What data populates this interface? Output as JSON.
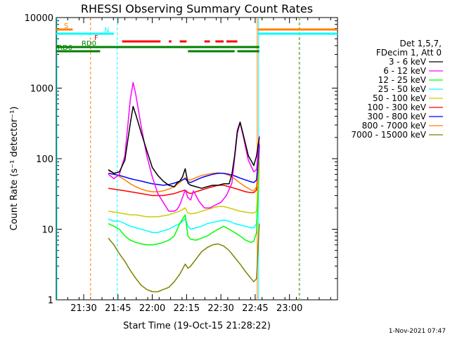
{
  "chart_data": {
    "type": "line",
    "title": "RHESSI Observing Summary Count Rates",
    "xlabel": "Start Time (19-Oct-15 21:28:22)",
    "ylabel": "Count Rate (s⁻¹ detector⁻¹)",
    "y_scale": "log",
    "ylim": [
      1,
      10000
    ],
    "xlim_minutes": [
      21.3,
      23.35
    ],
    "x_ticks": [
      {
        "t": 21.5,
        "label": "21:30"
      },
      {
        "t": 21.75,
        "label": "21:45"
      },
      {
        "t": 22.0,
        "label": "22:00"
      },
      {
        "t": 22.25,
        "label": "22:15"
      },
      {
        "t": 22.5,
        "label": "22:30"
      },
      {
        "t": 22.75,
        "label": "22:45"
      },
      {
        "t": 23.0,
        "label": "23:00"
      }
    ],
    "y_ticks": [
      {
        "v": 1,
        "label": "1"
      },
      {
        "v": 10,
        "label": "10"
      },
      {
        "v": 100,
        "label": "100"
      },
      {
        "v": 1000,
        "label": "1000"
      },
      {
        "v": 10000,
        "label": "10000"
      }
    ],
    "legend": {
      "header": [
        "Det 1,5,7,",
        "FDecim 1, Att 0"
      ],
      "position": "right"
    },
    "series": [
      {
        "name": "3 - 6 keV",
        "color": "#000000",
        "x": [
          21.68,
          21.72,
          21.76,
          21.8,
          21.84,
          21.86,
          21.88,
          21.92,
          21.96,
          22.0,
          22.04,
          22.08,
          22.12,
          22.16,
          22.18,
          22.2,
          22.22,
          22.24,
          22.26,
          22.28,
          22.32,
          22.36,
          22.4,
          22.44,
          22.48,
          22.52,
          22.56,
          22.58,
          22.6,
          22.62,
          22.64,
          22.66,
          22.7,
          22.74,
          22.76,
          22.78
        ],
        "y": [
          70,
          62,
          65,
          95,
          320,
          550,
          420,
          230,
          130,
          75,
          58,
          48,
          42,
          40,
          45,
          48,
          55,
          72,
          45,
          42,
          40,
          38,
          40,
          42,
          42,
          44,
          44,
          60,
          110,
          250,
          330,
          230,
          110,
          80,
          110,
          200
        ]
      },
      {
        "name": "6 - 12 keV",
        "color": "#ff00ff",
        "x": [
          21.68,
          21.72,
          21.76,
          21.8,
          21.84,
          21.86,
          21.88,
          21.92,
          21.96,
          22.0,
          22.04,
          22.08,
          22.12,
          22.16,
          22.18,
          22.2,
          22.24,
          22.26,
          22.28,
          22.3,
          22.34,
          22.38,
          22.42,
          22.46,
          22.5,
          22.54,
          22.58,
          22.62,
          22.64,
          22.66,
          22.7,
          22.74,
          22.76,
          22.78
        ],
        "y": [
          60,
          52,
          60,
          110,
          700,
          1200,
          800,
          280,
          110,
          55,
          32,
          24,
          18,
          18,
          19,
          22,
          36,
          28,
          26,
          35,
          25,
          20,
          20,
          22,
          24,
          30,
          45,
          230,
          320,
          220,
          95,
          65,
          70,
          210
        ]
      },
      {
        "name": "12 - 25 keV",
        "color": "#00ff00",
        "x": [
          21.68,
          21.72,
          21.76,
          21.8,
          21.84,
          21.88,
          21.92,
          21.96,
          22.0,
          22.04,
          22.08,
          22.12,
          22.16,
          22.2,
          22.24,
          22.26,
          22.28,
          22.32,
          22.36,
          22.4,
          22.44,
          22.48,
          22.52,
          22.56,
          22.6,
          22.64,
          22.68,
          22.72,
          22.74,
          22.76,
          22.78
        ],
        "y": [
          12,
          11,
          10,
          8,
          7,
          6.5,
          6.2,
          6,
          6,
          6.2,
          6.5,
          7,
          8,
          12,
          16,
          8,
          7.2,
          7,
          7.5,
          8,
          9,
          10,
          11,
          10,
          9,
          8,
          7,
          6.5,
          6.8,
          9,
          90
        ]
      },
      {
        "name": "25 - 50 keV",
        "color": "#00ffff",
        "x": [
          21.68,
          21.72,
          21.76,
          21.8,
          21.84,
          21.88,
          21.92,
          21.96,
          22.0,
          22.04,
          22.08,
          22.12,
          22.16,
          22.2,
          22.24,
          22.26,
          22.28,
          22.32,
          22.36,
          22.4,
          22.44,
          22.48,
          22.52,
          22.56,
          22.6,
          22.64,
          22.68,
          22.72,
          22.74,
          22.76,
          22.78
        ],
        "y": [
          14,
          13,
          13,
          12,
          11,
          10.5,
          10,
          9.5,
          9,
          9,
          9.5,
          10,
          11,
          12,
          14,
          11,
          10,
          10.5,
          11,
          12,
          12.5,
          13,
          13.5,
          13,
          12,
          11.5,
          11,
          10.5,
          10.5,
          12,
          110
        ]
      },
      {
        "name": "50 - 100 keV",
        "color": "#cccc00",
        "x": [
          21.68,
          21.72,
          21.76,
          21.8,
          21.84,
          21.88,
          21.92,
          21.96,
          22.0,
          22.04,
          22.08,
          22.12,
          22.16,
          22.2,
          22.24,
          22.26,
          22.28,
          22.32,
          22.36,
          22.4,
          22.44,
          22.48,
          22.52,
          22.56,
          22.6,
          22.64,
          22.68,
          22.72,
          22.74,
          22.76,
          22.78
        ],
        "y": [
          18,
          17.5,
          17,
          16.5,
          16,
          16,
          15.5,
          15,
          15,
          15,
          15.5,
          16,
          17,
          18,
          20,
          17,
          16.5,
          17,
          18,
          19,
          20,
          21,
          21,
          20,
          19,
          18,
          17.5,
          17,
          17,
          18,
          130
        ]
      },
      {
        "name": "100 - 300 keV",
        "color": "#ff0000",
        "x": [
          21.68,
          21.72,
          21.76,
          21.8,
          21.84,
          21.88,
          21.92,
          21.96,
          22.0,
          22.04,
          22.08,
          22.12,
          22.16,
          22.2,
          22.24,
          22.26,
          22.28,
          22.32,
          22.36,
          22.4,
          22.44,
          22.48,
          22.52,
          22.56,
          22.6,
          22.64,
          22.68,
          22.72,
          22.74,
          22.76,
          22.78
        ],
        "y": [
          38,
          37,
          36,
          35,
          34,
          33,
          32,
          31,
          30,
          30,
          30,
          31,
          32,
          34,
          36,
          33,
          32,
          34,
          36,
          38,
          40,
          42,
          42,
          40,
          38,
          36,
          34,
          33,
          33,
          36,
          150
        ]
      },
      {
        "name": "300 - 800 keV",
        "color": "#0000ff",
        "x": [
          21.68,
          21.72,
          21.76,
          21.8,
          21.84,
          21.88,
          21.92,
          21.96,
          22.0,
          22.04,
          22.08,
          22.12,
          22.16,
          22.2,
          22.24,
          22.26,
          22.28,
          22.32,
          22.36,
          22.4,
          22.44,
          22.48,
          22.52,
          22.56,
          22.6,
          22.64,
          22.68,
          22.72,
          22.74,
          22.76,
          22.78
        ],
        "y": [
          62,
          60,
          58,
          55,
          52,
          50,
          48,
          46,
          44,
          43,
          42,
          43,
          45,
          48,
          52,
          47,
          46,
          50,
          54,
          57,
          60,
          62,
          62,
          60,
          57,
          53,
          50,
          47,
          46,
          50,
          160
        ]
      },
      {
        "name": "800 - 7000 keV",
        "color": "#ff8000",
        "x": [
          21.68,
          21.72,
          21.76,
          21.8,
          21.84,
          21.88,
          21.92,
          21.96,
          22.0,
          22.04,
          22.08,
          22.12,
          22.16,
          22.2,
          22.24,
          22.26,
          22.28,
          22.32,
          22.36,
          22.4,
          22.44,
          22.48,
          22.52,
          22.56,
          22.6,
          22.64,
          22.68,
          22.72,
          22.74,
          22.76,
          22.78
        ],
        "y": [
          68,
          62,
          56,
          50,
          44,
          40,
          37,
          35,
          34,
          34,
          35,
          37,
          40,
          46,
          54,
          50,
          50,
          54,
          58,
          60,
          62,
          63,
          62,
          58,
          52,
          45,
          40,
          36,
          35,
          40,
          170
        ]
      },
      {
        "name": "7000 - 15000 keV",
        "color": "#808000",
        "x": [
          21.68,
          21.72,
          21.76,
          21.8,
          21.84,
          21.88,
          21.92,
          21.96,
          22.0,
          22.04,
          22.08,
          22.12,
          22.16,
          22.2,
          22.24,
          22.26,
          22.28,
          22.32,
          22.36,
          22.4,
          22.44,
          22.48,
          22.52,
          22.56,
          22.6,
          22.64,
          22.68,
          22.72,
          22.74,
          22.76,
          22.78
        ],
        "y": [
          7.5,
          6,
          4.5,
          3.5,
          2.6,
          2.0,
          1.6,
          1.4,
          1.3,
          1.3,
          1.4,
          1.5,
          1.8,
          2.3,
          3.2,
          2.8,
          3,
          3.8,
          4.8,
          5.5,
          6,
          6.2,
          5.8,
          5,
          4,
          3.2,
          2.5,
          2,
          1.8,
          2,
          12
        ]
      }
    ],
    "flags": [
      {
        "label": "S",
        "color": "#ff8000",
        "segments": [
          [
            21.3,
            21.42
          ],
          [
            22.77,
            23.35
          ]
        ],
        "level": "S"
      },
      {
        "label": "N",
        "color": "#00ffff",
        "segments": [
          [
            21.3,
            21.72
          ],
          [
            22.77,
            23.35
          ]
        ],
        "level": "N"
      },
      {
        "label": "F",
        "color": "#ff0000",
        "segments": [
          [
            21.78,
            22.06
          ],
          [
            22.12,
            22.14
          ],
          [
            22.2,
            22.25
          ],
          [
            22.38,
            22.42
          ],
          [
            22.46,
            22.52
          ],
          [
            22.54,
            22.62
          ]
        ],
        "level": "F"
      },
      {
        "label": "RD0",
        "color": "#008000",
        "segments": [
          [
            21.3,
            22.78
          ]
        ],
        "level": "RD0"
      },
      {
        "label": "RD6",
        "color": "#008000",
        "segments": [
          [
            21.3,
            21.62
          ],
          [
            22.26,
            22.6
          ],
          [
            22.62,
            22.78
          ]
        ],
        "level": "RD6"
      }
    ],
    "vlines": [
      {
        "t": 21.305,
        "color": "#00ffff",
        "dash": false
      },
      {
        "t": 21.55,
        "color": "#ff8000",
        "dash": true
      },
      {
        "t": 21.745,
        "color": "#00ffff",
        "dash": true
      },
      {
        "t": 22.775,
        "color": "#00ffff",
        "dash": false
      },
      {
        "t": 22.765,
        "color": "#ff8000",
        "dash": false
      },
      {
        "t": 23.075,
        "color": "#00ffff",
        "dash": true
      },
      {
        "t": 23.07,
        "color": "#ff8000",
        "dash": true
      }
    ]
  },
  "footer": {
    "date": "1-Nov-2021 07:47"
  }
}
